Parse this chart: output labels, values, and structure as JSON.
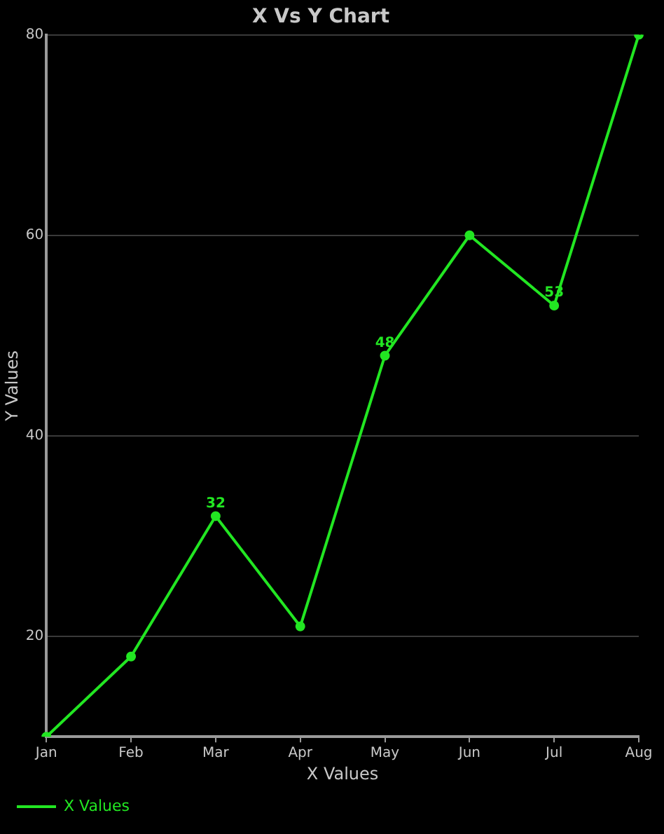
{
  "chart_data": {
    "type": "line",
    "title": "X Vs Y Chart",
    "xlabel": "X Values",
    "ylabel": "Y Values",
    "categories": [
      "Jan",
      "Feb",
      "Mar",
      "Apr",
      "May",
      "Jun",
      "Jul",
      "Aug"
    ],
    "series": [
      {
        "name": "X Values",
        "color": "#22e622",
        "values": [
          10,
          18,
          32,
          21,
          48,
          60,
          53,
          80
        ],
        "value_labels": [
          null,
          null,
          "32",
          null,
          "48",
          null,
          "53",
          null
        ]
      }
    ],
    "ylim": [
      10,
      80
    ],
    "yticks": [
      20,
      40,
      60,
      80
    ],
    "grid": "y",
    "legend": "bottom left",
    "marker": "circle",
    "line_style": "solid"
  }
}
